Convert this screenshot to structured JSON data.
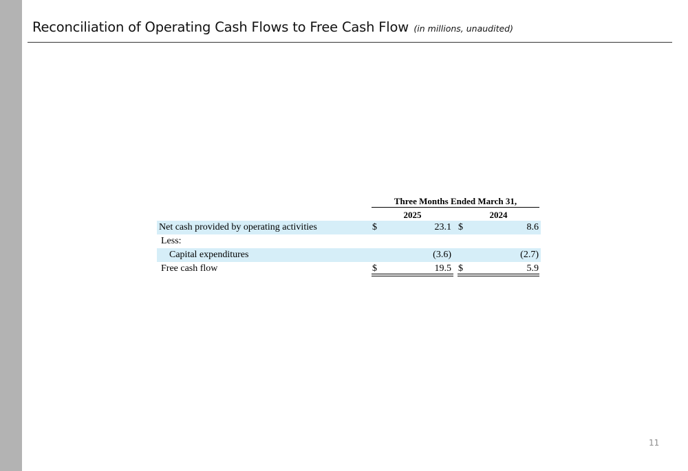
{
  "header": {
    "title": "Reconciliation of Operating Cash Flows to Free Cash Flow",
    "subtitle": "(in millions, unaudited)"
  },
  "table": {
    "column_group": "Three Months Ended March 31,",
    "years": [
      "2025",
      "2024"
    ],
    "rows": [
      {
        "label": "Net cash provided by operating activities",
        "cur_a": "$",
        "value_a": "23.1",
        "cur_b": "$",
        "value_b": "8.6"
      },
      {
        "label": "Less:"
      },
      {
        "label": "Capital expenditures",
        "value_a": "(3.6)",
        "value_b": "(2.7)"
      },
      {
        "label": "Free cash flow",
        "cur_a": "$",
        "value_a": "19.5",
        "cur_b": "$",
        "value_b": "5.9"
      }
    ]
  },
  "footer": {
    "page_number": "11"
  },
  "colors": {
    "sidebar": "#b3b3b3",
    "row_highlight": "#d6eef8"
  }
}
